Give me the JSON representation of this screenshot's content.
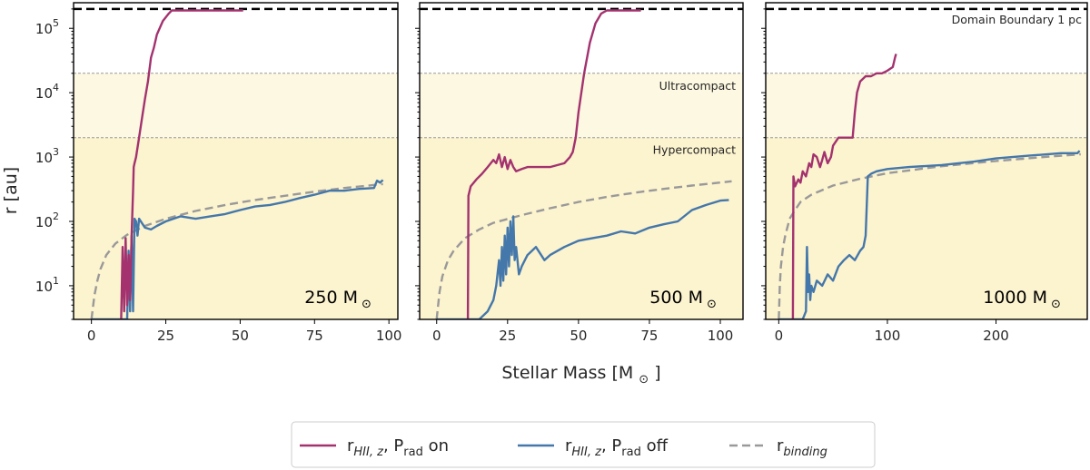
{
  "chart_data": {
    "type": "line",
    "xlabel": "Stellar Mass [M",
    "xlabel_tail": "]",
    "ylabel": "r [au]",
    "yscale": "log",
    "ylim": [
      3,
      250000
    ],
    "yticks": [
      {
        "value": 10,
        "label": "10",
        "exp": "1"
      },
      {
        "value": 100,
        "label": "10",
        "exp": "2"
      },
      {
        "value": 1000,
        "label": "10",
        "exp": "3"
      },
      {
        "value": 10000,
        "label": "10",
        "exp": "4"
      },
      {
        "value": 100000,
        "label": "10",
        "exp": "5"
      }
    ],
    "domain_boundary": {
      "value": 200000,
      "label": "Domain Boundary 1 pc"
    },
    "regions": [
      {
        "name": "Ultracompact",
        "low": 2000,
        "high": 20000,
        "color": "#fdf8e1"
      },
      {
        "name": "Hypercompact",
        "low": 3,
        "high": 2000,
        "color": "#fcf3cf"
      }
    ],
    "series_styles": [
      {
        "key": "on",
        "color": "#a3326f",
        "dash": "none"
      },
      {
        "key": "off",
        "color": "#4477aa",
        "dash": "none"
      },
      {
        "key": "binding",
        "color": "#999999",
        "dash": "9 5"
      }
    ],
    "legend": {
      "placement": "lower-center",
      "entries": [
        {
          "key": "on",
          "r": "r",
          "sub": "HII, z",
          "sep": ", P",
          "psub": "rad",
          "tail": " on"
        },
        {
          "key": "off",
          "r": "r",
          "sub": "HII, z",
          "sep": ", P",
          "psub": "rad",
          "tail": " off"
        },
        {
          "key": "binding",
          "r": "r",
          "sub": "binding",
          "sep": "",
          "psub": "",
          "tail": ""
        }
      ]
    },
    "panels": [
      {
        "mass_label": "250 M",
        "xlim": [
          -6,
          103
        ],
        "xticks": [
          0,
          25,
          50,
          75,
          100
        ],
        "series": {
          "on": {
            "x": [
              10,
              10.5,
              11,
              11.5,
              12,
              12.5,
              13,
              13.5,
              14,
              14.2,
              14.5,
              15,
              16,
              17,
              18,
              19,
              20,
              21,
              22,
              24,
              26,
              27,
              30,
              35,
              40,
              45,
              51
            ],
            "y": [
              3,
              40,
              4,
              55,
              5,
              30,
              6,
              60,
              300,
              700,
              800,
              1000,
              2000,
              4000,
              8000,
              15000,
              35000,
              50000,
              80000,
              130000,
              170000,
              190000,
              190000,
              190000,
              190000,
              190000,
              190000
            ]
          },
          "off": {
            "x": [
              0,
              10,
              12,
              12.5,
              13,
              13.5,
              14,
              14.5,
              15,
              15.5,
              16,
              18,
              20,
              22,
              25,
              30,
              35,
              40,
              45,
              50,
              55,
              60,
              65,
              70,
              75,
              80,
              85,
              90,
              95,
              96,
              97,
              98
            ],
            "y": [
              3,
              3,
              3,
              35,
              4,
              60,
              4,
              110,
              100,
              60,
              110,
              80,
              75,
              85,
              100,
              120,
              110,
              120,
              130,
              150,
              170,
              180,
              200,
              230,
              260,
              300,
              300,
              320,
              330,
              430,
              400,
              440
            ]
          },
          "binding": {
            "x": [
              0,
              1,
              2,
              3,
              5,
              8,
              12,
              18,
              25,
              35,
              45,
              55,
              65,
              75,
              85,
              98
            ],
            "y": [
              3,
              7,
              12,
              18,
              30,
              45,
              62,
              85,
              110,
              145,
              180,
              215,
              250,
              290,
              330,
              380
            ]
          }
        },
        "show_region_labels": false,
        "show_boundary_label": false
      },
      {
        "mass_label": "500 M",
        "xlim": [
          -6,
          108
        ],
        "xticks": [
          0,
          25,
          50,
          75,
          100
        ],
        "series": {
          "on": {
            "x": [
              11,
              11.2,
              12,
              14,
              16,
              18,
              20,
              21,
              22,
              23,
              24,
              25,
              26,
              27,
              28,
              30,
              32,
              35,
              40,
              45,
              47,
              48,
              49,
              50,
              52,
              54,
              56,
              58,
              60,
              65,
              72
            ],
            "y": [
              3,
              250,
              350,
              450,
              550,
              700,
              900,
              800,
              1100,
              700,
              1000,
              650,
              900,
              700,
              600,
              650,
              700,
              700,
              700,
              800,
              1000,
              1200,
              2000,
              5000,
              20000,
              60000,
              120000,
              170000,
              190000,
              190000,
              190000
            ]
          },
          "off": {
            "x": [
              0,
              10,
              15,
              18,
              20,
              21,
              22,
              22.5,
              23,
              23.5,
              24,
              24.5,
              25,
              25.5,
              26,
              26.5,
              27,
              27.5,
              28,
              29,
              30,
              32,
              35,
              38,
              40,
              45,
              50,
              55,
              60,
              65,
              70,
              75,
              80,
              85,
              90,
              95,
              100,
              103
            ],
            "y": [
              3,
              3,
              3,
              4,
              6,
              10,
              25,
              10,
              40,
              12,
              60,
              15,
              80,
              20,
              100,
              30,
              120,
              25,
              40,
              15,
              20,
              30,
              40,
              25,
              30,
              40,
              50,
              55,
              60,
              70,
              65,
              80,
              90,
              100,
              150,
              180,
              210,
              215
            ]
          },
          "binding": {
            "x": [
              0,
              1,
              2,
              4,
              6,
              10,
              15,
              20,
              30,
              40,
              50,
              60,
              70,
              80,
              90,
              104
            ],
            "y": [
              3,
              8,
              14,
              25,
              35,
              55,
              75,
              95,
              125,
              160,
              200,
              240,
              280,
              320,
              360,
              420
            ]
          }
        },
        "show_region_labels": true,
        "show_boundary_label": false
      },
      {
        "mass_label": "1000 M",
        "xlim": [
          -12,
          284
        ],
        "xticks": [
          0,
          100,
          200
        ],
        "series": {
          "on": {
            "x": [
              13,
              13.5,
              15,
              18,
              20,
              22,
              25,
              28,
              30,
              32,
              35,
              38,
              40,
              42,
              45,
              48,
              50,
              55,
              60,
              65,
              68,
              70,
              72,
              75,
              80,
              85,
              90,
              95,
              100,
              105,
              107,
              108
            ],
            "y": [
              3,
              500,
              350,
              450,
              400,
              600,
              500,
              800,
              700,
              1100,
              1000,
              700,
              900,
              1200,
              800,
              1000,
              1500,
              2000,
              2000,
              2000,
              2000,
              5000,
              10000,
              15000,
              18000,
              18000,
              20000,
              20000,
              22000,
              25000,
              35000,
              40000
            ]
          },
          "off": {
            "x": [
              0,
              5,
              10,
              15,
              20,
              22,
              25,
              26,
              27,
              28,
              29,
              30,
              32,
              35,
              40,
              45,
              50,
              55,
              60,
              65,
              70,
              75,
              78,
              80,
              82,
              85,
              90,
              100,
              120,
              150,
              180,
              200,
              230,
              260,
              275,
              277
            ],
            "y": [
              3,
              3,
              3,
              3,
              3,
              3,
              4,
              40,
              8,
              15,
              6,
              10,
              8,
              12,
              10,
              15,
              12,
              20,
              25,
              30,
              25,
              35,
              40,
              60,
              500,
              550,
              600,
              650,
              700,
              750,
              850,
              950,
              1050,
              1150,
              1150,
              1250
            ]
          },
          "binding": {
            "x": [
              0,
              1,
              2,
              4,
              6,
              10,
              15,
              20,
              30,
              50,
              75,
              100,
              150,
              200,
              250,
              278
            ],
            "y": [
              3,
              10,
              20,
              40,
              60,
              110,
              150,
              200,
              260,
              360,
              460,
              560,
              720,
              870,
              1020,
              1100
            ]
          }
        },
        "show_region_labels": false,
        "show_boundary_label": true
      }
    ]
  }
}
